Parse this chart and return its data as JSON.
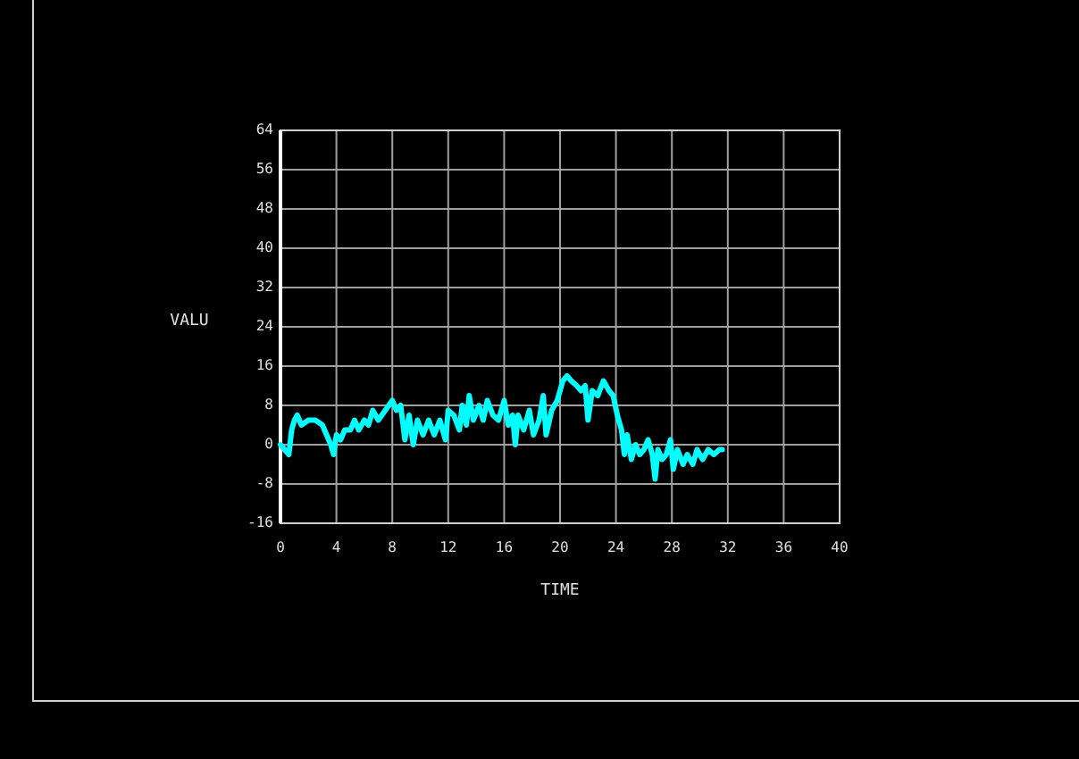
{
  "chart_data": {
    "type": "line",
    "xlabel": "TIME",
    "ylabel": "VALU",
    "xlim": [
      0,
      40
    ],
    "ylim": [
      -16,
      64
    ],
    "xticks": [
      0,
      4,
      8,
      12,
      16,
      20,
      24,
      28,
      32,
      36,
      40
    ],
    "yticks": [
      -16,
      -8,
      0,
      8,
      16,
      24,
      32,
      40,
      48,
      56,
      64
    ],
    "grid": true,
    "marker": "none",
    "line_style": "solid",
    "series": [
      {
        "color": "#00ffff",
        "x": [
          0,
          0.3,
          0.6,
          0.8,
          1,
          1.2,
          1.5,
          2,
          2.5,
          3,
          3.3,
          3.6,
          3.8,
          4,
          4.3,
          4.6,
          5,
          5.3,
          5.6,
          6,
          6.3,
          6.6,
          7,
          7.5,
          8,
          8.3,
          8.6,
          8.9,
          9.2,
          9.5,
          9.8,
          10.2,
          10.6,
          11,
          11.4,
          11.8,
          12,
          12.4,
          12.8,
          13,
          13.3,
          13.5,
          13.8,
          14.2,
          14.5,
          14.8,
          15.2,
          15.6,
          16,
          16.3,
          16.6,
          16.8,
          17,
          17.4,
          17.8,
          18.1,
          18.5,
          18.8,
          19,
          19.4,
          19.8,
          20.2,
          20.5,
          20.8,
          21.2,
          21.5,
          21.8,
          22,
          22.3,
          22.7,
          23.1,
          23.5,
          23.8,
          24.1,
          24.4,
          24.6,
          24.8,
          25.1,
          25.4,
          25.7,
          26,
          26.3,
          26.6,
          26.8,
          27,
          27.3,
          27.6,
          27.9,
          28.1,
          28.4,
          28.8,
          29.1,
          29.5,
          29.8,
          30.2,
          30.6,
          31,
          31.4,
          31.6
        ],
        "values": [
          0,
          -1,
          -2,
          3,
          5,
          6,
          4,
          5,
          5,
          4,
          2,
          0,
          -2,
          2,
          1,
          3,
          3,
          5,
          3,
          5,
          4,
          7,
          5,
          7,
          9,
          7,
          8,
          1,
          6,
          0,
          5,
          2,
          5,
          2,
          5,
          1,
          7,
          6,
          3,
          8,
          4,
          10,
          5,
          8,
          5,
          9,
          6,
          5,
          9,
          4,
          6,
          0,
          6,
          3,
          7,
          2,
          5,
          10,
          2,
          7,
          9,
          13,
          14,
          13,
          12,
          11,
          12,
          5,
          11,
          10,
          13,
          11,
          10,
          6,
          3,
          -2,
          2,
          -3,
          0,
          -2,
          -1,
          1,
          -2,
          -7,
          -1,
          -3,
          -2,
          1,
          -5,
          -1,
          -4,
          -2,
          -4,
          -1,
          -3,
          -1,
          -2,
          -1,
          -1
        ]
      }
    ]
  }
}
